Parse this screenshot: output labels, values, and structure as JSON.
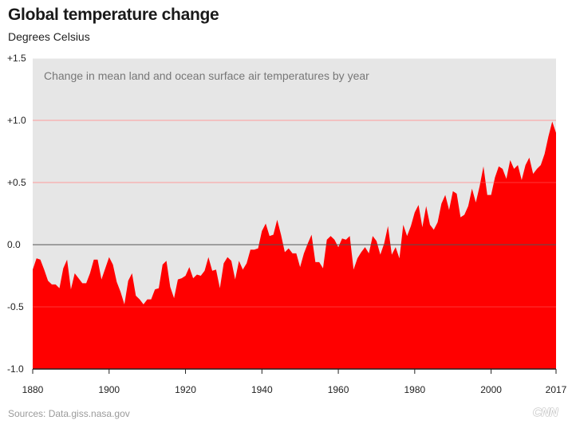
{
  "title": "Global temperature change",
  "subtitle": "Degrees Celsius",
  "source": "Sources: Data.giss.nasa.gov",
  "logo": "CNN",
  "colors": {
    "fill": "#ff0000",
    "plot_background": "#e6e6e6",
    "zero_line": "#555555"
  },
  "chart_data": {
    "type": "area",
    "title": "Global temperature change",
    "ylabel": "Degrees Celsius",
    "annotation": "Change in mean land and ocean surface air temperatures by year",
    "xlim": [
      1880,
      2017
    ],
    "ylim": [
      -1.0,
      1.5
    ],
    "y_ticks": [
      {
        "value": -1.0,
        "label": "-1.0"
      },
      {
        "value": -0.5,
        "label": "-0.5"
      },
      {
        "value": 0.0,
        "label": "0.0"
      },
      {
        "value": 0.5,
        "label": "+0.5"
      },
      {
        "value": 1.0,
        "label": "+1.0"
      },
      {
        "value": 1.5,
        "label": "+1.5"
      }
    ],
    "x_ticks": [
      {
        "value": 1880,
        "label": "1880"
      },
      {
        "value": 1900,
        "label": "1900"
      },
      {
        "value": 1920,
        "label": "1920"
      },
      {
        "value": 1940,
        "label": "1940"
      },
      {
        "value": 1960,
        "label": "1960"
      },
      {
        "value": 1980,
        "label": "1980"
      },
      {
        "value": 2000,
        "label": "2000"
      },
      {
        "value": 2017,
        "label": "2017"
      }
    ],
    "grid": true,
    "x": [
      1880,
      1881,
      1882,
      1883,
      1884,
      1885,
      1886,
      1887,
      1888,
      1889,
      1890,
      1891,
      1892,
      1893,
      1894,
      1895,
      1896,
      1897,
      1898,
      1899,
      1900,
      1901,
      1902,
      1903,
      1904,
      1905,
      1906,
      1907,
      1908,
      1909,
      1910,
      1911,
      1912,
      1913,
      1914,
      1915,
      1916,
      1917,
      1918,
      1919,
      1920,
      1921,
      1922,
      1923,
      1924,
      1925,
      1926,
      1927,
      1928,
      1929,
      1930,
      1931,
      1932,
      1933,
      1934,
      1935,
      1936,
      1937,
      1938,
      1939,
      1940,
      1941,
      1942,
      1943,
      1944,
      1945,
      1946,
      1947,
      1948,
      1949,
      1950,
      1951,
      1952,
      1953,
      1954,
      1955,
      1956,
      1957,
      1958,
      1959,
      1960,
      1961,
      1962,
      1963,
      1964,
      1965,
      1966,
      1967,
      1968,
      1969,
      1970,
      1971,
      1972,
      1973,
      1974,
      1975,
      1976,
      1977,
      1978,
      1979,
      1980,
      1981,
      1982,
      1983,
      1984,
      1985,
      1986,
      1987,
      1988,
      1989,
      1990,
      1991,
      1992,
      1993,
      1994,
      1995,
      1996,
      1997,
      1998,
      1999,
      2000,
      2001,
      2002,
      2003,
      2004,
      2005,
      2006,
      2007,
      2008,
      2009,
      2010,
      2011,
      2012,
      2013,
      2014,
      2015,
      2016,
      2017
    ],
    "values": [
      -0.2,
      -0.11,
      -0.12,
      -0.2,
      -0.29,
      -0.32,
      -0.32,
      -0.35,
      -0.19,
      -0.12,
      -0.36,
      -0.23,
      -0.27,
      -0.31,
      -0.31,
      -0.23,
      -0.12,
      -0.12,
      -0.28,
      -0.19,
      -0.1,
      -0.16,
      -0.3,
      -0.38,
      -0.48,
      -0.29,
      -0.23,
      -0.41,
      -0.44,
      -0.48,
      -0.44,
      -0.44,
      -0.36,
      -0.35,
      -0.16,
      -0.13,
      -0.34,
      -0.43,
      -0.28,
      -0.27,
      -0.25,
      -0.18,
      -0.27,
      -0.24,
      -0.25,
      -0.21,
      -0.1,
      -0.21,
      -0.2,
      -0.35,
      -0.15,
      -0.1,
      -0.13,
      -0.28,
      -0.13,
      -0.2,
      -0.15,
      -0.04,
      -0.04,
      -0.03,
      0.11,
      0.17,
      0.07,
      0.08,
      0.2,
      0.08,
      -0.06,
      -0.03,
      -0.07,
      -0.07,
      -0.18,
      -0.07,
      0.01,
      0.08,
      -0.14,
      -0.14,
      -0.19,
      0.04,
      0.07,
      0.04,
      -0.02,
      0.05,
      0.04,
      0.07,
      -0.2,
      -0.11,
      -0.06,
      -0.02,
      -0.07,
      0.07,
      0.03,
      -0.08,
      0.01,
      0.15,
      -0.08,
      -0.02,
      -0.11,
      0.16,
      0.07,
      0.15,
      0.26,
      0.32,
      0.14,
      0.31,
      0.16,
      0.12,
      0.18,
      0.33,
      0.4,
      0.28,
      0.43,
      0.41,
      0.22,
      0.24,
      0.31,
      0.45,
      0.34,
      0.47,
      0.63,
      0.4,
      0.4,
      0.54,
      0.63,
      0.61,
      0.53,
      0.68,
      0.61,
      0.64,
      0.52,
      0.64,
      0.7,
      0.57,
      0.61,
      0.64,
      0.73,
      0.87,
      0.99,
      0.9
    ]
  }
}
